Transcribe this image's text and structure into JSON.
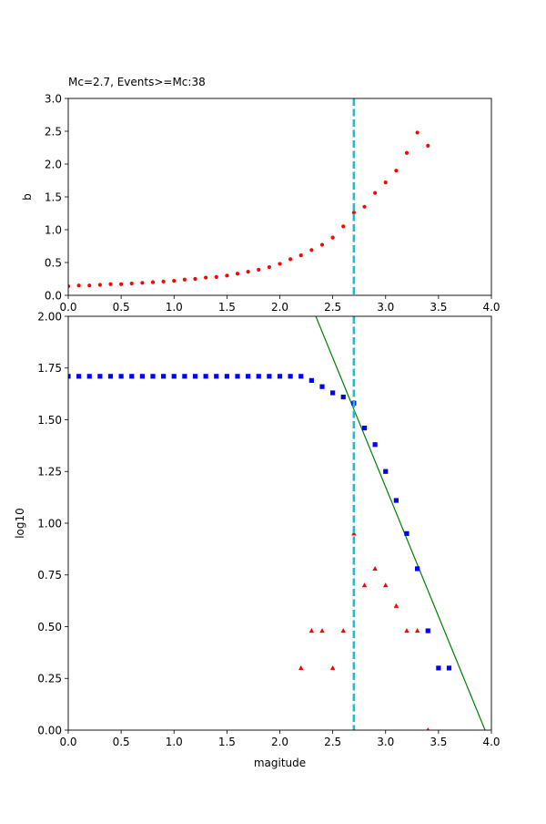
{
  "chart_data": [
    {
      "type": "scatter",
      "title": "Mc=2.7, Events>=Mc:38",
      "xlabel": "",
      "ylabel": "b",
      "xlim": [
        0,
        4
      ],
      "ylim": [
        0,
        3
      ],
      "x_ticks": [
        "0.0",
        "0.5",
        "1.0",
        "1.5",
        "2.0",
        "2.5",
        "3.0",
        "3.5",
        "4.0"
      ],
      "y_ticks": [
        "0.0",
        "0.5",
        "1.0",
        "1.5",
        "2.0",
        "2.5",
        "3.0"
      ],
      "grid": false,
      "mc_line": {
        "x": 2.7,
        "color": "#17becf",
        "style": "dashed"
      },
      "series": [
        {
          "marker": "circle",
          "color": "#ff0000",
          "x": [
            0.0,
            0.1,
            0.2,
            0.3,
            0.4,
            0.5,
            0.6,
            0.7,
            0.8,
            0.9,
            1.0,
            1.1,
            1.2,
            1.3,
            1.4,
            1.5,
            1.6,
            1.7,
            1.8,
            1.9,
            2.0,
            2.1,
            2.2,
            2.3,
            2.4,
            2.5,
            2.6,
            2.7,
            2.8,
            2.9,
            3.0,
            3.1,
            3.2,
            3.3,
            3.4
          ],
          "y": [
            0.14,
            0.15,
            0.15,
            0.16,
            0.17,
            0.17,
            0.18,
            0.19,
            0.2,
            0.21,
            0.22,
            0.24,
            0.25,
            0.27,
            0.28,
            0.3,
            0.33,
            0.36,
            0.39,
            0.43,
            0.48,
            0.55,
            0.61,
            0.69,
            0.77,
            0.88,
            1.05,
            1.26,
            1.35,
            1.56,
            1.72,
            1.9,
            2.17,
            2.48,
            2.28
          ]
        }
      ]
    },
    {
      "type": "scatter",
      "title": "",
      "xlabel": "magitude",
      "ylabel": "log10",
      "xlim": [
        0,
        4
      ],
      "ylim": [
        0,
        2
      ],
      "x_ticks": [
        "0.0",
        "0.5",
        "1.0",
        "1.5",
        "2.0",
        "2.5",
        "3.0",
        "3.5",
        "4.0"
      ],
      "y_ticks": [
        "0.00",
        "0.25",
        "0.50",
        "0.75",
        "1.00",
        "1.25",
        "1.50",
        "1.75",
        "2.00"
      ],
      "grid": false,
      "mc_line": {
        "x": 2.7,
        "color": "#17becf",
        "style": "dashed"
      },
      "fit_line": {
        "x": [
          2.34,
          3.94
        ],
        "y": [
          2.0,
          0.0
        ],
        "color": "#008000"
      },
      "series": [
        {
          "marker": "square",
          "color": "#0000ff",
          "x": [
            0.0,
            0.1,
            0.2,
            0.3,
            0.4,
            0.5,
            0.6,
            0.7,
            0.8,
            0.9,
            1.0,
            1.1,
            1.2,
            1.3,
            1.4,
            1.5,
            1.6,
            1.7,
            1.8,
            1.9,
            2.0,
            2.1,
            2.2,
            2.3,
            2.4,
            2.5,
            2.6,
            2.7,
            2.8,
            2.9,
            3.0,
            3.1,
            3.2,
            3.3,
            3.4,
            3.5,
            3.6
          ],
          "y": [
            1.71,
            1.71,
            1.71,
            1.71,
            1.71,
            1.71,
            1.71,
            1.71,
            1.71,
            1.71,
            1.71,
            1.71,
            1.71,
            1.71,
            1.71,
            1.71,
            1.71,
            1.71,
            1.71,
            1.71,
            1.71,
            1.71,
            1.71,
            1.69,
            1.66,
            1.63,
            1.61,
            1.58,
            1.46,
            1.38,
            1.25,
            1.11,
            0.95,
            0.78,
            0.48,
            0.3,
            0.3
          ]
        },
        {
          "marker": "triangle",
          "color": "#ff0000",
          "x": [
            2.2,
            2.3,
            2.4,
            2.5,
            2.6,
            2.7,
            2.8,
            2.9,
            3.0,
            3.1,
            3.2,
            3.3,
            3.4
          ],
          "y": [
            0.3,
            0.48,
            0.48,
            0.3,
            0.48,
            0.95,
            0.7,
            0.78,
            0.7,
            0.6,
            0.48,
            0.48,
            0.0
          ]
        }
      ]
    }
  ]
}
